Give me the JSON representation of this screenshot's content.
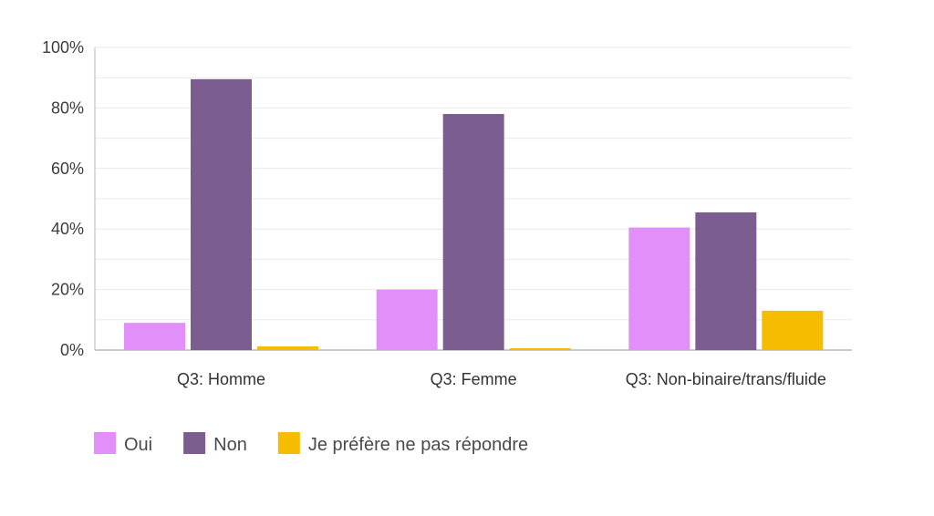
{
  "chart_data": {
    "type": "bar",
    "categories": [
      "Q3: Homme",
      "Q3: Femme",
      "Q3: Non-binaire/trans/fluide"
    ],
    "series": [
      {
        "name": "Oui",
        "values": [
          9,
          20,
          40.5
        ],
        "color": "#e28ff9"
      },
      {
        "name": "Non",
        "values": [
          89.5,
          78,
          45.5
        ],
        "color": "#7b5e8f"
      },
      {
        "name": "Je préfère ne pas répondre",
        "values": [
          1.2,
          0.6,
          13
        ],
        "color": "#f6bc00"
      }
    ],
    "y_ticks": [
      "0%",
      "20%",
      "40%",
      "60%",
      "80%",
      "100%"
    ],
    "ylim": [
      0,
      100
    ],
    "grid": true,
    "legend_position": "bottom-left",
    "title": "",
    "xlabel": "",
    "ylabel": ""
  }
}
